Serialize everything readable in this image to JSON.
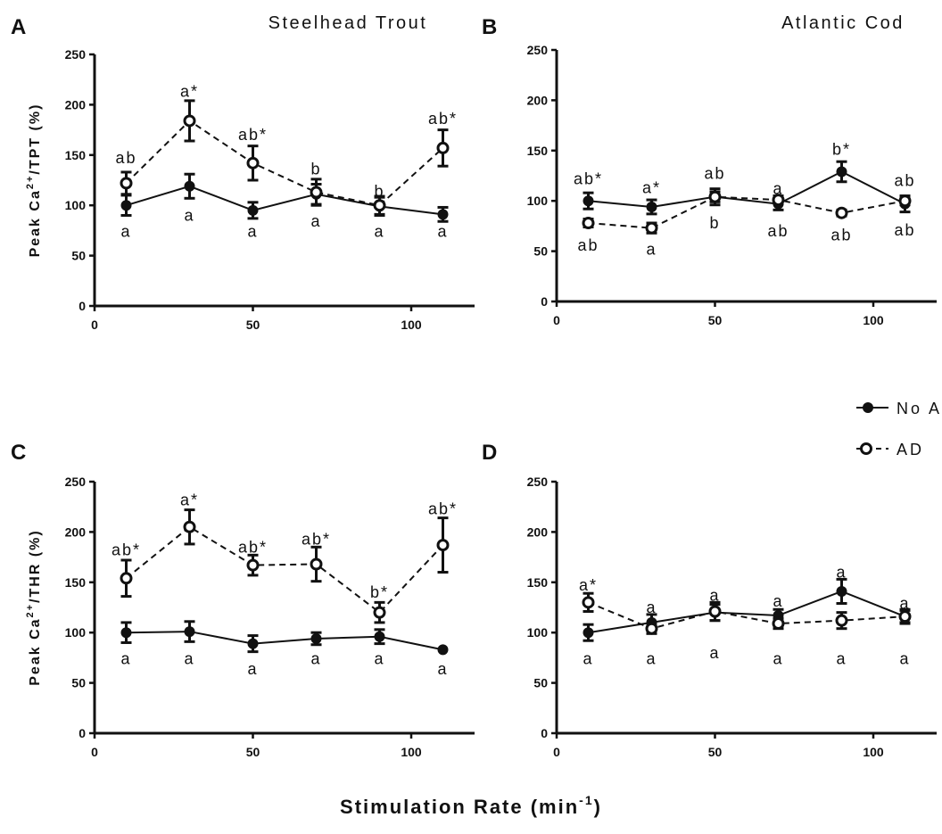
{
  "x_axis_label": "Stimulation Rate (min-1)",
  "x_axis_label_main": "Stimulation Rate (min",
  "x_axis_label_sup": "-1",
  "x_axis_label_close": ")",
  "legend": {
    "position": "right, between rows",
    "items": [
      {
        "key": "noad",
        "label": "No AD",
        "marker": "filled-circle",
        "line": "solid"
      },
      {
        "key": "ad",
        "label": "AD",
        "marker": "open-circle",
        "line": "dashed"
      }
    ]
  },
  "chart_data": [
    {
      "type": "line",
      "panel": "A",
      "title": "Steelhead Trout",
      "ylabel": "Peak Ca2+/TPT (%)",
      "ylabel_pre": "Peak Ca",
      "ylabel_sup": "2+",
      "ylabel_post": "/TPT (%)",
      "xlim": [
        0,
        120
      ],
      "xticks": [
        0,
        50,
        100
      ],
      "ylim": [
        0,
        250
      ],
      "yticks": [
        0,
        50,
        100,
        150,
        200,
        250
      ],
      "grid": false,
      "x": [
        10,
        30,
        50,
        70,
        90,
        110
      ],
      "series": [
        {
          "name": "No AD",
          "values": [
            100,
            119,
            95,
            111,
            99,
            91
          ],
          "errors": [
            10,
            12,
            8,
            10,
            9,
            7
          ]
        },
        {
          "name": "AD",
          "values": [
            122,
            184,
            142,
            113,
            100,
            157
          ],
          "errors": [
            11,
            20,
            17,
            13,
            9,
            18
          ]
        }
      ],
      "annotations": [
        {
          "x": 10,
          "value": 147,
          "text": "ab"
        },
        {
          "x": 30,
          "value": 213,
          "text": "a*"
        },
        {
          "x": 50,
          "value": 170,
          "text": "ab*"
        },
        {
          "x": 70,
          "value": 136,
          "text": "b"
        },
        {
          "x": 90,
          "value": 114,
          "text": "b"
        },
        {
          "x": 110,
          "value": 186,
          "text": "ab*"
        },
        {
          "x": 10,
          "value": 74,
          "text": "a"
        },
        {
          "x": 30,
          "value": 90,
          "text": "a"
        },
        {
          "x": 50,
          "value": 74,
          "text": "a"
        },
        {
          "x": 70,
          "value": 84,
          "text": "a"
        },
        {
          "x": 90,
          "value": 74,
          "text": "a"
        },
        {
          "x": 110,
          "value": 74,
          "text": "a"
        }
      ]
    },
    {
      "type": "line",
      "panel": "B",
      "title": "Atlantic Cod",
      "ylabel": "",
      "xlim": [
        0,
        120
      ],
      "xticks": [
        0,
        50,
        100
      ],
      "ylim": [
        0,
        250
      ],
      "yticks": [
        0,
        50,
        100,
        150,
        200,
        250
      ],
      "grid": false,
      "x": [
        10,
        30,
        50,
        70,
        90,
        110
      ],
      "series": [
        {
          "name": "No AD",
          "values": [
            100,
            94,
            104,
            97,
            129,
            97
          ],
          "errors": [
            8,
            7,
            8,
            6,
            10,
            8
          ]
        },
        {
          "name": "AD",
          "values": [
            78,
            73,
            104,
            101,
            88,
            100
          ],
          "errors": [
            4,
            5,
            5,
            4,
            3,
            4
          ]
        }
      ],
      "annotations": [
        {
          "x": 10,
          "value": 122,
          "text": "ab*"
        },
        {
          "x": 30,
          "value": 113,
          "text": "a*"
        },
        {
          "x": 50,
          "value": 127,
          "text": "ab"
        },
        {
          "x": 70,
          "value": 112,
          "text": "a"
        },
        {
          "x": 90,
          "value": 151,
          "text": "b*"
        },
        {
          "x": 110,
          "value": 120,
          "text": "ab"
        },
        {
          "x": 10,
          "value": 56,
          "text": "ab"
        },
        {
          "x": 30,
          "value": 52,
          "text": "a"
        },
        {
          "x": 50,
          "value": 78,
          "text": "b"
        },
        {
          "x": 70,
          "value": 70,
          "text": "ab"
        },
        {
          "x": 90,
          "value": 66,
          "text": "ab"
        },
        {
          "x": 110,
          "value": 71,
          "text": "ab"
        }
      ]
    },
    {
      "type": "line",
      "panel": "C",
      "title": "",
      "ylabel": "Peak Ca2+/THR (%)",
      "ylabel_pre": "Peak Ca",
      "ylabel_sup": "2+",
      "ylabel_post": "/THR (%)",
      "xlim": [
        0,
        120
      ],
      "xticks": [
        0,
        50,
        100
      ],
      "ylim": [
        0,
        250
      ],
      "yticks": [
        0,
        50,
        100,
        150,
        200,
        250
      ],
      "grid": false,
      "x": [
        10,
        30,
        50,
        70,
        90,
        110
      ],
      "series": [
        {
          "name": "No AD",
          "values": [
            100,
            101,
            89,
            94,
            96,
            83
          ],
          "errors": [
            10,
            10,
            8,
            6,
            7,
            0
          ]
        },
        {
          "name": "AD",
          "values": [
            154,
            205,
            167,
            168,
            120,
            187
          ],
          "errors": [
            18,
            17,
            10,
            17,
            10,
            27
          ]
        }
      ],
      "annotations": [
        {
          "x": 10,
          "value": 182,
          "text": "ab*"
        },
        {
          "x": 30,
          "value": 232,
          "text": "a*"
        },
        {
          "x": 50,
          "value": 185,
          "text": "ab*"
        },
        {
          "x": 70,
          "value": 193,
          "text": "ab*"
        },
        {
          "x": 90,
          "value": 140,
          "text": "b*"
        },
        {
          "x": 110,
          "value": 223,
          "text": "ab*"
        },
        {
          "x": 10,
          "value": 74,
          "text": "a"
        },
        {
          "x": 30,
          "value": 74,
          "text": "a"
        },
        {
          "x": 50,
          "value": 64,
          "text": "a"
        },
        {
          "x": 70,
          "value": 74,
          "text": "a"
        },
        {
          "x": 90,
          "value": 74,
          "text": "a"
        },
        {
          "x": 110,
          "value": 64,
          "text": "a"
        }
      ]
    },
    {
      "type": "line",
      "panel": "D",
      "title": "",
      "ylabel": "",
      "xlim": [
        0,
        120
      ],
      "xticks": [
        0,
        50,
        100
      ],
      "ylim": [
        0,
        250
      ],
      "yticks": [
        0,
        50,
        100,
        150,
        200,
        250
      ],
      "grid": false,
      "x": [
        10,
        30,
        50,
        70,
        90,
        110
      ],
      "series": [
        {
          "name": "No AD",
          "values": [
            100,
            110,
            120,
            117,
            141,
            116
          ],
          "errors": [
            8,
            8,
            8,
            6,
            12,
            6
          ]
        },
        {
          "name": "AD",
          "values": [
            130,
            104,
            121,
            109,
            112,
            116
          ],
          "errors": [
            9,
            5,
            9,
            5,
            8,
            7
          ]
        }
      ],
      "annotations": [
        {
          "x": 10,
          "value": 147,
          "text": "a*"
        },
        {
          "x": 30,
          "value": 125,
          "text": "a"
        },
        {
          "x": 50,
          "value": 137,
          "text": "a"
        },
        {
          "x": 70,
          "value": 131,
          "text": "a"
        },
        {
          "x": 90,
          "value": 160,
          "text": "a"
        },
        {
          "x": 110,
          "value": 129,
          "text": "a"
        },
        {
          "x": 10,
          "value": 74,
          "text": "a"
        },
        {
          "x": 30,
          "value": 74,
          "text": "a"
        },
        {
          "x": 50,
          "value": 80,
          "text": "a"
        },
        {
          "x": 70,
          "value": 74,
          "text": "a"
        },
        {
          "x": 90,
          "value": 74,
          "text": "a"
        },
        {
          "x": 110,
          "value": 74,
          "text": "a"
        }
      ]
    }
  ]
}
